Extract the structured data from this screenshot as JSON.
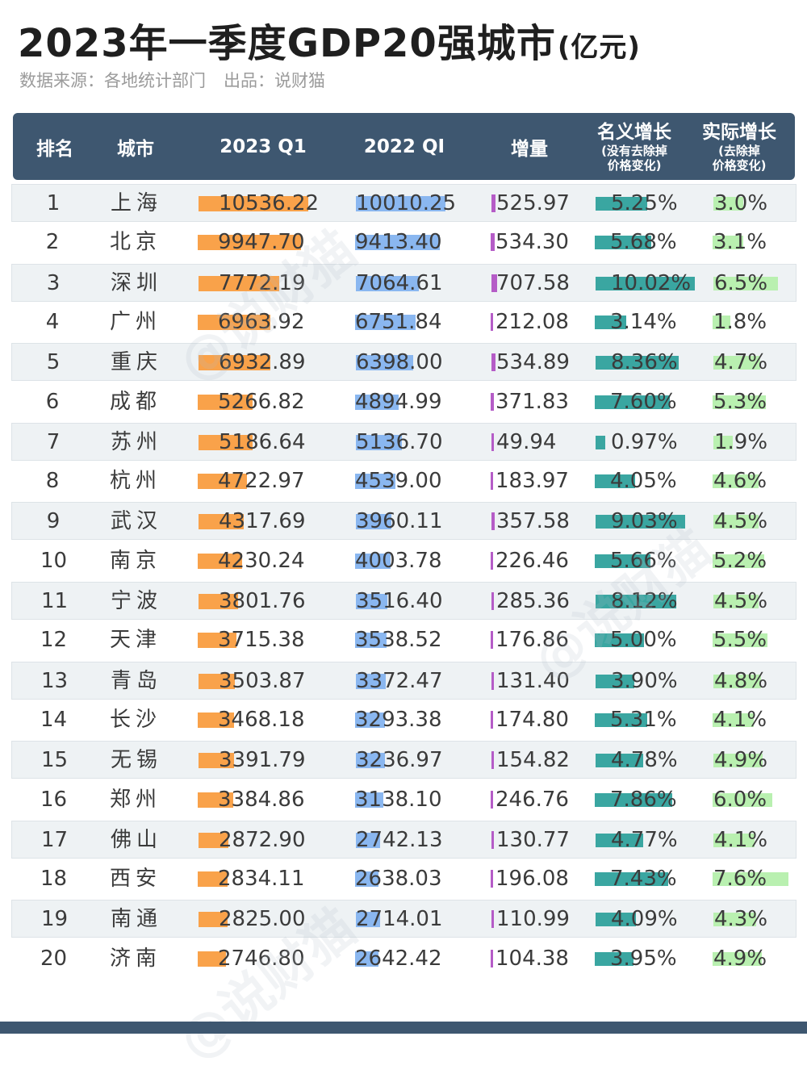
{
  "header": {
    "title": "2023年一季度GDP20强城市",
    "title_unit": "(亿元)",
    "source_label": "数据来源：各地统计部门",
    "producer_label": "出品：说财猫"
  },
  "columns": {
    "rank": "排名",
    "city": "城市",
    "q1_2023": "2023 Q1",
    "q1_2022": "2022 QI",
    "increase": "增量",
    "nominal_main": "名义增长",
    "nominal_sub1": "(没有去除掉",
    "nominal_sub2": "价格变化)",
    "real_main": "实际增长",
    "real_sub1": "(去除掉",
    "real_sub2": "价格变化)"
  },
  "watermark": "@说财猫",
  "colors": {
    "header_bg": "#3e5770",
    "bar_2023": "#f9a24a",
    "bar_2022": "#8ab7f0",
    "bar_increase": "#b55cc7",
    "bar_nominal": "#3aa6a1",
    "bar_real": "#b9f0b0"
  },
  "chart_data": {
    "type": "table",
    "title": "2023年一季度GDP20强城市(亿元)",
    "columns": [
      "排名",
      "城市",
      "2023 Q1",
      "2022 QI",
      "增量",
      "名义增长",
      "实际增长"
    ],
    "rows": [
      {
        "rank": "1",
        "city": "上海",
        "q2023": "10536.22",
        "q2022": "10010.25",
        "inc": "525.97",
        "nominal": "5.25%",
        "real": "3.0%"
      },
      {
        "rank": "2",
        "city": "北京",
        "q2023": "9947.70",
        "q2022": "9413.40",
        "inc": "534.30",
        "nominal": "5.68%",
        "real": "3.1%"
      },
      {
        "rank": "3",
        "city": "深圳",
        "q2023": "7772.19",
        "q2022": "7064.61",
        "inc": "707.58",
        "nominal": "10.02%",
        "real": "6.5%"
      },
      {
        "rank": "4",
        "city": "广州",
        "q2023": "6963.92",
        "q2022": "6751.84",
        "inc": "212.08",
        "nominal": "3.14%",
        "real": "1.8%"
      },
      {
        "rank": "5",
        "city": "重庆",
        "q2023": "6932.89",
        "q2022": "6398.00",
        "inc": "534.89",
        "nominal": "8.36%",
        "real": "4.7%"
      },
      {
        "rank": "6",
        "city": "成都",
        "q2023": "5266.82",
        "q2022": "4894.99",
        "inc": "371.83",
        "nominal": "7.60%",
        "real": "5.3%"
      },
      {
        "rank": "7",
        "city": "苏州",
        "q2023": "5186.64",
        "q2022": "5136.70",
        "inc": "49.94",
        "nominal": "0.97%",
        "real": "1.9%"
      },
      {
        "rank": "8",
        "city": "杭州",
        "q2023": "4722.97",
        "q2022": "4539.00",
        "inc": "183.97",
        "nominal": "4.05%",
        "real": "4.6%"
      },
      {
        "rank": "9",
        "city": "武汉",
        "q2023": "4317.69",
        "q2022": "3960.11",
        "inc": "357.58",
        "nominal": "9.03%",
        "real": "4.5%"
      },
      {
        "rank": "10",
        "city": "南京",
        "q2023": "4230.24",
        "q2022": "4003.78",
        "inc": "226.46",
        "nominal": "5.66%",
        "real": "5.2%"
      },
      {
        "rank": "11",
        "city": "宁波",
        "q2023": "3801.76",
        "q2022": "3516.40",
        "inc": "285.36",
        "nominal": "8.12%",
        "real": "4.5%"
      },
      {
        "rank": "12",
        "city": "天津",
        "q2023": "3715.38",
        "q2022": "3538.52",
        "inc": "176.86",
        "nominal": "5.00%",
        "real": "5.5%"
      },
      {
        "rank": "13",
        "city": "青岛",
        "q2023": "3503.87",
        "q2022": "3372.47",
        "inc": "131.40",
        "nominal": "3.90%",
        "real": "4.8%"
      },
      {
        "rank": "14",
        "city": "长沙",
        "q2023": "3468.18",
        "q2022": "3293.38",
        "inc": "174.80",
        "nominal": "5.31%",
        "real": "4.1%"
      },
      {
        "rank": "15",
        "city": "无锡",
        "q2023": "3391.79",
        "q2022": "3236.97",
        "inc": "154.82",
        "nominal": "4.78%",
        "real": "4.9%"
      },
      {
        "rank": "16",
        "city": "郑州",
        "q2023": "3384.86",
        "q2022": "3138.10",
        "inc": "246.76",
        "nominal": "7.86%",
        "real": "6.0%"
      },
      {
        "rank": "17",
        "city": "佛山",
        "q2023": "2872.90",
        "q2022": "2742.13",
        "inc": "130.77",
        "nominal": "4.77%",
        "real": "4.1%"
      },
      {
        "rank": "18",
        "city": "西安",
        "q2023": "2834.11",
        "q2022": "2638.03",
        "inc": "196.08",
        "nominal": "7.43%",
        "real": "7.6%"
      },
      {
        "rank": "19",
        "city": "南通",
        "q2023": "2825.00",
        "q2022": "2714.01",
        "inc": "110.99",
        "nominal": "4.09%",
        "real": "4.3%"
      },
      {
        "rank": "20",
        "city": "济南",
        "q2023": "2746.80",
        "q2022": "2642.42",
        "inc": "104.38",
        "nominal": "3.95%",
        "real": "4.9%"
      }
    ]
  }
}
